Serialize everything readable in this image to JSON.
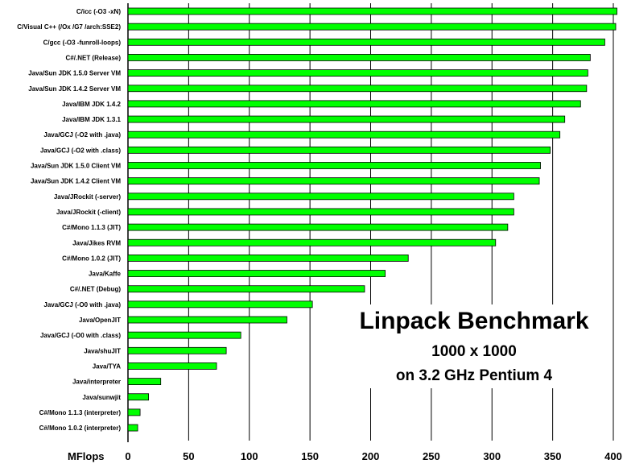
{
  "chart_data": {
    "type": "bar",
    "orientation": "horizontal",
    "title": "Linpack Benchmark",
    "subtitle_lines": [
      "1000 x 1000",
      "on 3.2 GHz Pentium 4"
    ],
    "xlabel": "MFlops",
    "xlim": [
      0,
      400
    ],
    "xticks": [
      0,
      50,
      100,
      150,
      200,
      250,
      300,
      350,
      400
    ],
    "grid": "vertical",
    "bar_color": "#00ff00",
    "categories": [
      "C/icc (-O3 -xN)",
      "C/Visual C++ (/Ox /G7 /arch:SSE2)",
      "C/gcc (-O3 -funroll-loops)",
      "C#/.NET (Release)",
      "Java/Sun JDK 1.5.0 Server VM",
      "Java/Sun JDK 1.4.2 Server VM",
      "Java/IBM JDK 1.4.2",
      "Java/IBM JDK 1.3.1",
      "Java/GCJ (-O2 with .java)",
      "Java/GCJ (-O2 with .class)",
      "Java/Sun JDK 1.5.0 Client VM",
      "Java/Sun JDK 1.4.2 Client VM",
      "Java/JRockit (-server)",
      "Java/JRockit (-client)",
      "C#/Mono 1.1.3 (JIT)",
      "Java/Jikes RVM",
      "C#/Mono 1.0.2 (JIT)",
      "Java/Kaffe",
      "C#/.NET (Debug)",
      "Java/GCJ (-O0 with .java)",
      "Java/OpenJIT",
      "Java/GCJ (-O0 with .class)",
      "Java/shuJIT",
      "Java/TYA",
      "Java/interpreter",
      "Java/sunwjit",
      "C#/Mono 1.1.3 (interpreter)",
      "C#/Mono 1.0.2 (interpreter)"
    ],
    "values": [
      403,
      402,
      393,
      381,
      379,
      378,
      373,
      360,
      356,
      348,
      340,
      339,
      318,
      318,
      313,
      303,
      231,
      212,
      195,
      152,
      131,
      93,
      81,
      73,
      27,
      17,
      10,
      8
    ]
  }
}
